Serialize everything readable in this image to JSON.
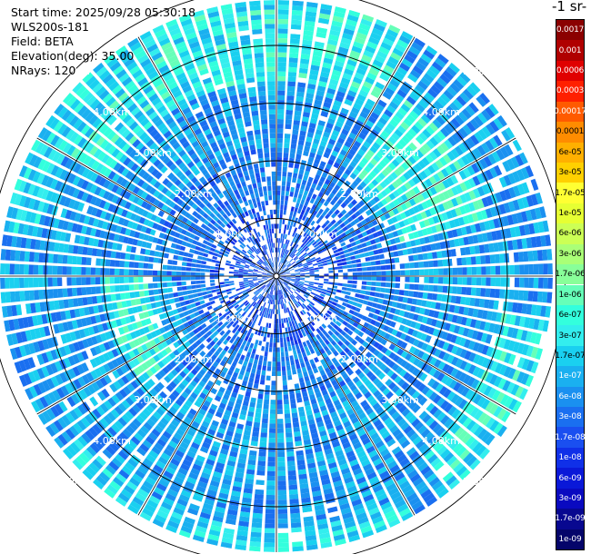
{
  "header": {
    "start_time": "Start time: 2025/09/28 05:30:18",
    "instrument": "WLS200s-181",
    "field": "Field: BETA",
    "elevation": "Elevation(deg): 35.00",
    "nrays": "NRays: 120"
  },
  "colorbar": {
    "title": "-1 sr-",
    "labels": [
      "0.0017",
      "0.001",
      "0.0006",
      "0.0003",
      "0.00017",
      "0.0001",
      "6e-05",
      "3e-05",
      "1.7e-05",
      "1e-05",
      "6e-06",
      "3e-06",
      "1.7e-06",
      "1e-06",
      "6e-07",
      "3e-07",
      "1.7e-07",
      "1e-07",
      "6e-08",
      "3e-08",
      "1.7e-08",
      "1e-08",
      "6e-09",
      "3e-09",
      "1.7e-09",
      "1e-09"
    ],
    "colors": [
      "#8b0000",
      "#b00000",
      "#e00000",
      "#ff2000",
      "#ff5a00",
      "#ff8c00",
      "#ffb000",
      "#ffd000",
      "#ffff33",
      "#e6ff33",
      "#ccff55",
      "#aaff77",
      "#88ff99",
      "#66ffb8",
      "#33ffdd",
      "#33eeee",
      "#1ad0f0",
      "#1ab0f0",
      "#1a90f0",
      "#1a6ff0",
      "#1a4ff0",
      "#1030e8",
      "#0a18d8",
      "#0a0ac0",
      "#080890",
      "#05056a"
    ]
  },
  "chart_data": {
    "type": "heatmap",
    "projection": "polar-ppi",
    "nrays": 120,
    "range_unit": "km",
    "max_range_km": 5.2,
    "range_rings_km": [
      1,
      2,
      3,
      4,
      5
    ],
    "range_labels": [
      "1.00km",
      "2.00km",
      "3.00km",
      "4.00km",
      "5.00km"
    ],
    "radial_spokes_deg": [
      0,
      30,
      60,
      90,
      120,
      150,
      180,
      210,
      240,
      270,
      300,
      330
    ],
    "colorbar_values": [
      0.0017,
      0.001,
      0.0006,
      0.0003,
      0.00017,
      0.0001,
      6e-05,
      3e-05,
      1.7e-05,
      1e-05,
      6e-06,
      3e-06,
      1.7e-06,
      1e-06,
      6e-07,
      3e-07,
      1.7e-07,
      1e-07,
      6e-08,
      3e-08,
      1.7e-08,
      1e-08,
      6e-09,
      3e-09,
      1.7e-09,
      1e-09
    ],
    "colorbar_position": "right",
    "grid": true
  }
}
